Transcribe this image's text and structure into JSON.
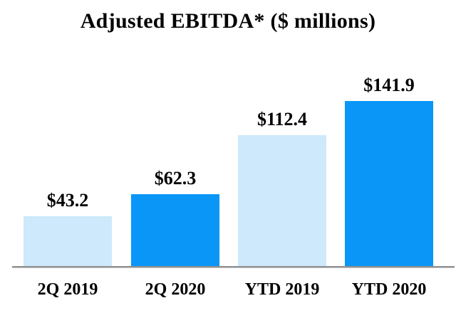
{
  "title": "Adjusted EBITDA* ($ millions)",
  "colors": {
    "light_blue": "#CDE9FB",
    "bright_blue": "#0996F7",
    "axis_line_gray": "#8F8F8F",
    "text": "#000000",
    "background": "#FFFFFF"
  },
  "chart_data": {
    "type": "bar",
    "title": "Adjusted EBITDA* ($ millions)",
    "categories": [
      "2Q 2019",
      "2Q 2020",
      "YTD 2019",
      "YTD 2020"
    ],
    "values": [
      43.2,
      62.3,
      112.4,
      141.9
    ],
    "value_labels": [
      "$43.2",
      "$62.3",
      "$112.4",
      "$141.9"
    ],
    "series_colors": [
      "#CDE9FB",
      "#0996F7",
      "#CDE9FB",
      "#0996F7"
    ],
    "xlabel": "",
    "ylabel": "",
    "ylim": [
      0,
      150
    ],
    "grid": false,
    "legend": "none",
    "axes_shown": "x-baseline-only"
  }
}
